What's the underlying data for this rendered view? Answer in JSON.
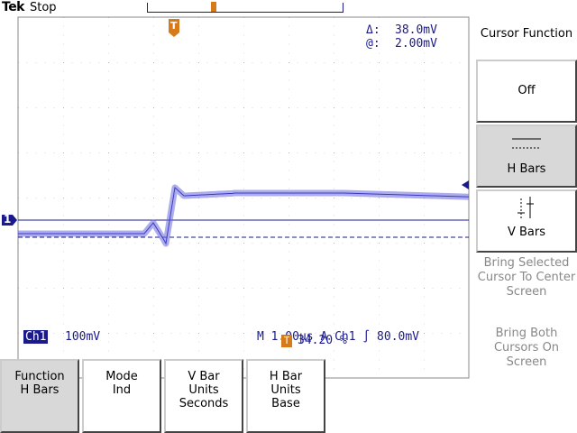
{
  "header": {
    "brand": "Tek",
    "status": "Stop"
  },
  "readout": {
    "delta_label": "Δ:",
    "delta_value": "38.0mV",
    "at_label": "@:",
    "at_value": "2.00mV"
  },
  "channel": {
    "name": "Ch1",
    "scale": "100mV",
    "marker": "1"
  },
  "timebase": {
    "text": "M 1.00µs  A  Ch1  ∫  80.0mV"
  },
  "trigger": {
    "marker": "T",
    "position": "34.20 %"
  },
  "side_menu": {
    "title": "Cursor Function",
    "off": "Off",
    "hbars": "H Bars",
    "vbars": "V Bars",
    "hint_center": "Bring Selected Cursor To Center Screen",
    "hint_both": "Bring Both Cursors On Screen"
  },
  "bottom_menu": [
    {
      "line1": "Function",
      "line2": "H Bars"
    },
    {
      "line1": "Mode",
      "line2": "Ind"
    },
    {
      "line1": "V Bar",
      "line2": "Units",
      "line3": "Seconds"
    },
    {
      "line1": "H Bar",
      "line2": "Units",
      "line3": "Base"
    }
  ],
  "colors": {
    "trace": "#5a5ad8",
    "cursor": "#1a1a8c",
    "trigger": "#d77a1a"
  }
}
